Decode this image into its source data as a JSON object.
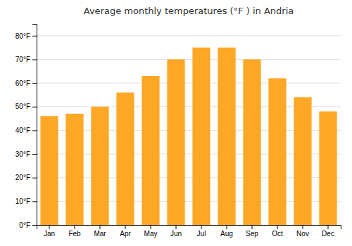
{
  "chart_data": {
    "type": "bar",
    "title": "Average monthly temperatures (°F ) in Andria",
    "categories": [
      "Jan",
      "Feb",
      "Mar",
      "Apr",
      "May",
      "Jun",
      "Jul",
      "Aug",
      "Sep",
      "Oct",
      "Nov",
      "Dec"
    ],
    "values": [
      46,
      47,
      50,
      56,
      63,
      70,
      75,
      75,
      70,
      62,
      54,
      48
    ],
    "color": "#FFA726",
    "ylim": [
      0,
      85
    ],
    "yticks": [
      {
        "value": 0,
        "label": "0°F"
      },
      {
        "value": 10,
        "label": "10°F"
      },
      {
        "value": 20,
        "label": "20°F"
      },
      {
        "value": 30,
        "label": "30°F"
      },
      {
        "value": 40,
        "label": "40°F"
      },
      {
        "value": 50,
        "label": "50°F"
      },
      {
        "value": 60,
        "label": "60°F"
      },
      {
        "value": 70,
        "label": "70°F"
      },
      {
        "value": 80,
        "label": "80°F"
      }
    ],
    "grid": true
  }
}
